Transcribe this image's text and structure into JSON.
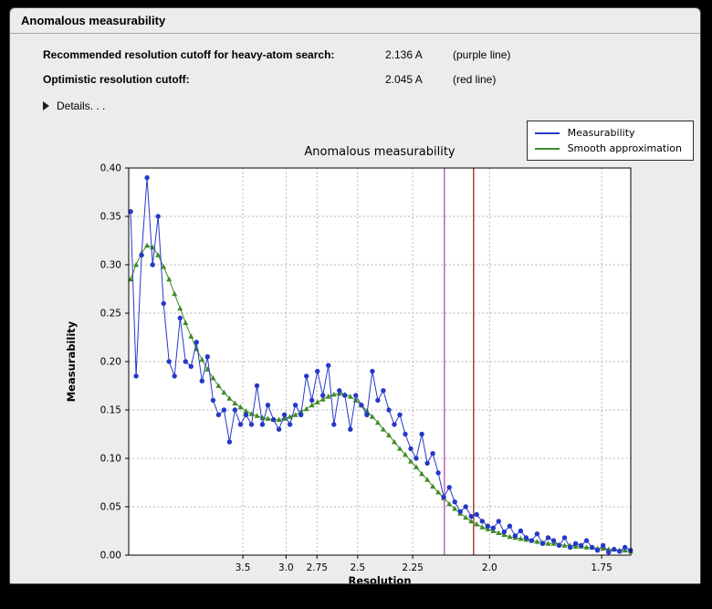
{
  "window": {
    "title": "Anomalous measurability"
  },
  "info": {
    "rows": [
      {
        "label": "Recommended resolution cutoff for heavy-atom search:",
        "value": "2.136 A",
        "note": "(purple line)"
      },
      {
        "label": "Optimistic resolution cutoff:",
        "value": "2.045 A",
        "note": "(red line)"
      }
    ],
    "details_label": "Details. . ."
  },
  "chart_data": {
    "type": "line",
    "title": "Anomalous measurability",
    "xlabel": "Resolution",
    "ylabel": "Measurability",
    "x_axis_note": "x positions linear in 1/d^2, axis reversed (low resolution at left)",
    "x_range_invdsq": [
      0.0037,
      0.3464
    ],
    "x_invdsq": {
      "start": 0.005,
      "step": 0.00375,
      "count": 92
    },
    "ylim": [
      0.0,
      0.4
    ],
    "yticks": [
      0.0,
      0.05,
      0.1,
      0.15,
      0.2,
      0.25,
      0.3,
      0.35,
      0.4
    ],
    "xticks": [
      {
        "label": "3.5",
        "d": 3.5
      },
      {
        "label": "3.0",
        "d": 3.0
      },
      {
        "label": "2.75",
        "d": 2.75
      },
      {
        "label": "2.5",
        "d": 2.5
      },
      {
        "label": "2.25",
        "d": 2.25
      },
      {
        "label": "2.0",
        "d": 2.0
      },
      {
        "label": "1.75",
        "d": 1.75
      }
    ],
    "series": [
      {
        "name": "Measurability",
        "color": "#2538c8",
        "marker": "circle",
        "values": [
          0.355,
          0.185,
          0.31,
          0.39,
          0.3,
          0.35,
          0.26,
          0.2,
          0.185,
          0.245,
          0.2,
          0.195,
          0.22,
          0.18,
          0.205,
          0.16,
          0.145,
          0.15,
          0.117,
          0.15,
          0.135,
          0.145,
          0.135,
          0.175,
          0.135,
          0.155,
          0.14,
          0.13,
          0.145,
          0.135,
          0.155,
          0.145,
          0.185,
          0.16,
          0.19,
          0.165,
          0.196,
          0.135,
          0.17,
          0.165,
          0.13,
          0.165,
          0.155,
          0.145,
          0.19,
          0.16,
          0.17,
          0.15,
          0.135,
          0.145,
          0.125,
          0.11,
          0.1,
          0.125,
          0.095,
          0.105,
          0.085,
          0.06,
          0.07,
          0.055,
          0.045,
          0.05,
          0.04,
          0.042,
          0.035,
          0.03,
          0.028,
          0.035,
          0.024,
          0.03,
          0.02,
          0.025,
          0.018,
          0.015,
          0.022,
          0.012,
          0.018,
          0.015,
          0.01,
          0.018,
          0.008,
          0.012,
          0.01,
          0.015,
          0.008,
          0.005,
          0.01,
          0.003,
          0.006,
          0.004,
          0.008,
          0.005
        ]
      },
      {
        "name": "Smooth approximation",
        "color": "#3f8a26",
        "marker": "triangle",
        "values": [
          0.285,
          0.3,
          0.312,
          0.32,
          0.318,
          0.31,
          0.298,
          0.285,
          0.27,
          0.255,
          0.24,
          0.226,
          0.213,
          0.202,
          0.192,
          0.183,
          0.175,
          0.168,
          0.162,
          0.157,
          0.153,
          0.149,
          0.146,
          0.144,
          0.142,
          0.141,
          0.14,
          0.14,
          0.141,
          0.143,
          0.145,
          0.148,
          0.151,
          0.155,
          0.158,
          0.161,
          0.164,
          0.166,
          0.167,
          0.166,
          0.164,
          0.16,
          0.155,
          0.149,
          0.143,
          0.137,
          0.13,
          0.124,
          0.117,
          0.11,
          0.104,
          0.097,
          0.091,
          0.084,
          0.078,
          0.071,
          0.065,
          0.059,
          0.053,
          0.048,
          0.043,
          0.039,
          0.035,
          0.032,
          0.029,
          0.027,
          0.025,
          0.023,
          0.021,
          0.019,
          0.018,
          0.017,
          0.016,
          0.015,
          0.014,
          0.013,
          0.012,
          0.012,
          0.011,
          0.01,
          0.01,
          0.009,
          0.009,
          0.008,
          0.008,
          0.007,
          0.007,
          0.006,
          0.006,
          0.005,
          0.005,
          0.004
        ]
      }
    ],
    "vlines": [
      {
        "d": 2.136,
        "color": "#b050b0",
        "name": "purple line"
      },
      {
        "d": 2.045,
        "color": "#992615",
        "name": "red line"
      }
    ],
    "legend": {
      "position": "upper right",
      "entries": [
        "Measurability",
        "Smooth approximation"
      ]
    }
  }
}
